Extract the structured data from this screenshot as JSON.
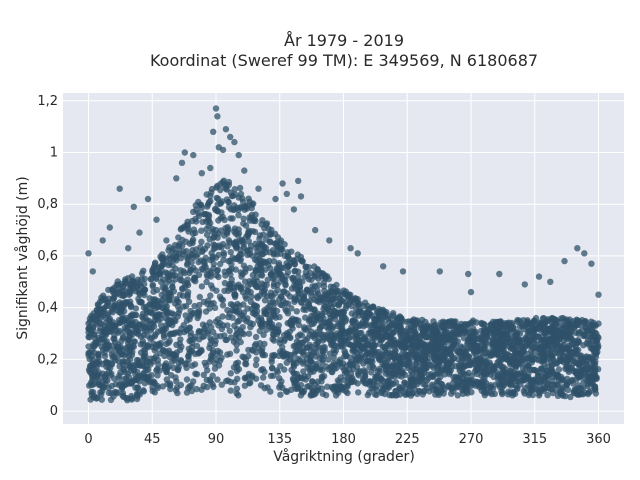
{
  "chart_data": {
    "type": "scatter",
    "title_line1": "År 1979 - 2019",
    "title_line2": "Koordinat (Sweref 99 TM): E 349569, N 6180687",
    "xlabel": "Vågriktning (grader)",
    "ylabel": "Signifikant våghöjd (m)",
    "xlim": [
      -18,
      378
    ],
    "ylim": [
      -0.05,
      1.23
    ],
    "x_ticks": [
      0,
      45,
      90,
      135,
      180,
      225,
      270,
      315,
      360
    ],
    "x_tick_labels": [
      "0",
      "45",
      "90",
      "135",
      "180",
      "225",
      "270",
      "315",
      "360"
    ],
    "y_ticks": [
      0,
      0.2,
      0.4,
      0.6,
      0.8,
      1.0,
      1.2
    ],
    "y_tick_labels": [
      "0",
      "0,2",
      "0,4",
      "0,6",
      "0,8",
      "1",
      "1,2"
    ],
    "grid": true,
    "marker_color": "#2f5269",
    "background_color": "#e5e8f0",
    "envelope": {
      "x": [
        0,
        10,
        20,
        30,
        45,
        60,
        75,
        90,
        100,
        110,
        125,
        135,
        150,
        165,
        180,
        195,
        210,
        225,
        240,
        270,
        300,
        315,
        330,
        345,
        360
      ],
      "upper": [
        0.36,
        0.45,
        0.5,
        0.52,
        0.56,
        0.66,
        0.8,
        0.88,
        0.9,
        0.85,
        0.74,
        0.68,
        0.6,
        0.54,
        0.47,
        0.42,
        0.39,
        0.36,
        0.35,
        0.35,
        0.35,
        0.36,
        0.36,
        0.36,
        0.34
      ],
      "lower": [
        0.04,
        0.04,
        0.04,
        0.04,
        0.05,
        0.06,
        0.06,
        0.06,
        0.06,
        0.06,
        0.06,
        0.06,
        0.06,
        0.06,
        0.06,
        0.06,
        0.06,
        0.06,
        0.06,
        0.06,
        0.06,
        0.06,
        0.06,
        0.05,
        0.05
      ]
    },
    "outliers": [
      {
        "x": 0,
        "y": 0.61
      },
      {
        "x": 3,
        "y": 0.54
      },
      {
        "x": 10,
        "y": 0.66
      },
      {
        "x": 15,
        "y": 0.71
      },
      {
        "x": 22,
        "y": 0.86
      },
      {
        "x": 28,
        "y": 0.63
      },
      {
        "x": 32,
        "y": 0.79
      },
      {
        "x": 36,
        "y": 0.69
      },
      {
        "x": 42,
        "y": 0.82
      },
      {
        "x": 48,
        "y": 0.74
      },
      {
        "x": 55,
        "y": 0.66
      },
      {
        "x": 62,
        "y": 0.9
      },
      {
        "x": 66,
        "y": 0.96
      },
      {
        "x": 68,
        "y": 1.0
      },
      {
        "x": 74,
        "y": 0.99
      },
      {
        "x": 80,
        "y": 0.92
      },
      {
        "x": 86,
        "y": 0.94
      },
      {
        "x": 88,
        "y": 1.08
      },
      {
        "x": 90,
        "y": 1.17
      },
      {
        "x": 91,
        "y": 1.14
      },
      {
        "x": 92,
        "y": 1.02
      },
      {
        "x": 95,
        "y": 1.01
      },
      {
        "x": 97,
        "y": 1.09
      },
      {
        "x": 100,
        "y": 1.06
      },
      {
        "x": 103,
        "y": 1.04
      },
      {
        "x": 106,
        "y": 0.99
      },
      {
        "x": 110,
        "y": 0.93
      },
      {
        "x": 120,
        "y": 0.86
      },
      {
        "x": 132,
        "y": 0.82
      },
      {
        "x": 137,
        "y": 0.88
      },
      {
        "x": 140,
        "y": 0.84
      },
      {
        "x": 145,
        "y": 0.78
      },
      {
        "x": 148,
        "y": 0.89
      },
      {
        "x": 150,
        "y": 0.83
      },
      {
        "x": 160,
        "y": 0.7
      },
      {
        "x": 170,
        "y": 0.66
      },
      {
        "x": 185,
        "y": 0.63
      },
      {
        "x": 190,
        "y": 0.61
      },
      {
        "x": 208,
        "y": 0.56
      },
      {
        "x": 222,
        "y": 0.54
      },
      {
        "x": 248,
        "y": 0.54
      },
      {
        "x": 268,
        "y": 0.53
      },
      {
        "x": 270,
        "y": 0.46
      },
      {
        "x": 290,
        "y": 0.53
      },
      {
        "x": 308,
        "y": 0.49
      },
      {
        "x": 318,
        "y": 0.52
      },
      {
        "x": 326,
        "y": 0.5
      },
      {
        "x": 336,
        "y": 0.58
      },
      {
        "x": 345,
        "y": 0.63
      },
      {
        "x": 350,
        "y": 0.61
      },
      {
        "x": 355,
        "y": 0.57
      },
      {
        "x": 360,
        "y": 0.45
      }
    ]
  }
}
